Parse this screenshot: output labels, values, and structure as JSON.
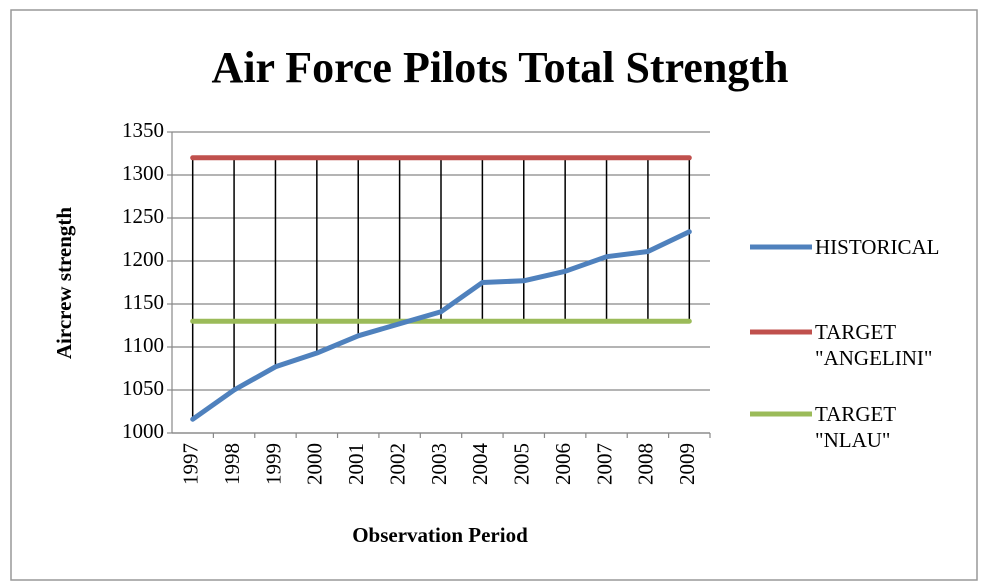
{
  "chart_data": {
    "type": "line",
    "title": "Air Force Pilots Total Strength",
    "x_label": "Observation Period",
    "y_label": "Aircrew strength",
    "categories": [
      "1997",
      "1998",
      "1999",
      "2000",
      "2001",
      "2002",
      "2003",
      "2004",
      "2005",
      "2006",
      "2007",
      "2008",
      "2009"
    ],
    "series": [
      {
        "name": "HISTORICAL",
        "color": "#4f81bd",
        "values": [
          1016,
          1050,
          1077,
          1093,
          1113,
          1127,
          1141,
          1175,
          1177,
          1188,
          1205,
          1211,
          1234
        ]
      },
      {
        "name": "TARGET \"ANGELINI\"",
        "color": "#c0504d",
        "values": [
          1320,
          1320,
          1320,
          1320,
          1320,
          1320,
          1320,
          1320,
          1320,
          1320,
          1320,
          1320,
          1320
        ]
      },
      {
        "name": "TARGET \"NLAU\"",
        "color": "#9bbb59",
        "values": [
          1130,
          1130,
          1130,
          1130,
          1130,
          1130,
          1130,
          1130,
          1130,
          1130,
          1130,
          1130,
          1130
        ]
      }
    ],
    "ylim": [
      1000,
      1350
    ],
    "yticks": [
      1000,
      1050,
      1100,
      1150,
      1200,
      1250,
      1300,
      1350
    ],
    "grid": true,
    "hi_lo_lines": true,
    "legend_position": "right"
  }
}
